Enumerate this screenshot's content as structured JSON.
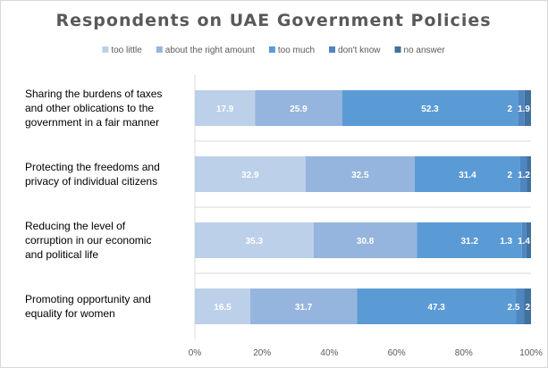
{
  "chart_data": {
    "type": "bar",
    "orientation": "horizontal",
    "stacked": "100%",
    "title": "Respondents on UAE Government Policies",
    "categories": [
      [
        "Sharing the burdens of taxes",
        "and other oblications to the",
        "government in a fair manner"
      ],
      [
        "Protecting the freedoms and",
        "privacy of individual citizens"
      ],
      [
        "Reducing the level of",
        "corruption in our economic",
        "and political life"
      ],
      [
        "Promoting opportunity and",
        "equality for women"
      ]
    ],
    "series": [
      {
        "name": "too little",
        "color": "#bdd0ea",
        "values": [
          17.9,
          32.9,
          35.3,
          16.5
        ]
      },
      {
        "name": "about the right amount",
        "color": "#95b5de",
        "values": [
          25.9,
          32.5,
          30.8,
          31.7
        ]
      },
      {
        "name": "too much",
        "color": "#5b9bd5",
        "values": [
          52.3,
          31.4,
          31.2,
          47.3
        ]
      },
      {
        "name": "don't know",
        "color": "#4f86bf",
        "values": [
          2,
          2,
          1.3,
          2.5
        ]
      },
      {
        "name": "no answer",
        "color": "#41719c",
        "values": [
          1.9,
          1.2,
          1.4,
          2
        ]
      }
    ],
    "xlim": [
      0,
      100
    ],
    "xticks": [
      "0%",
      "20%",
      "40%",
      "60%",
      "80%",
      "100%"
    ],
    "legend": "top",
    "grid": false
  }
}
